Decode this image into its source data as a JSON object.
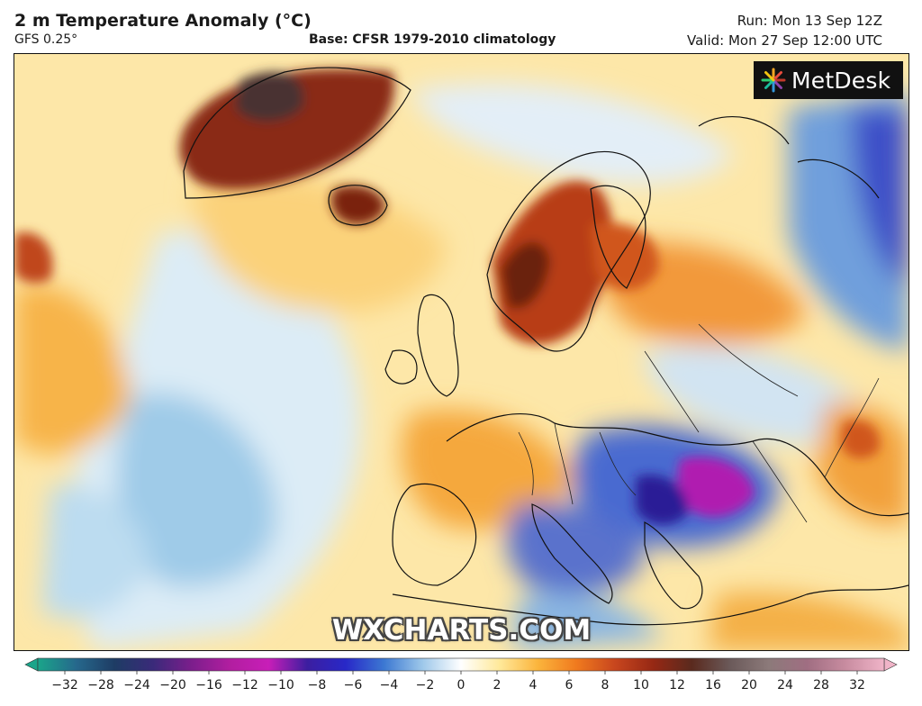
{
  "header": {
    "title": "2 m Temperature Anomaly (°C)",
    "model": "GFS 0.25°",
    "base": "Base: CFSR 1979-2010 climatology",
    "run": "Run: Mon 13 Sep 12Z",
    "valid": "Valid: Mon 27 Sep 12:00 UTC"
  },
  "brand": {
    "name": "MetDesk",
    "icon": "metdesk-starburst-logo"
  },
  "watermark": "WXCHARTS.COM",
  "colorbar": {
    "ticks": [
      "−32",
      "−28",
      "−24",
      "−20",
      "−16",
      "−12",
      "−10",
      "−8",
      "−6",
      "−4",
      "−2",
      "0",
      "2",
      "4",
      "6",
      "8",
      "10",
      "12",
      "16",
      "20",
      "24",
      "28",
      "32"
    ],
    "colors": [
      "#1aa58a",
      "#26688c",
      "#1e3c64",
      "#3a2a7a",
      "#7c1e8c",
      "#b21ea0",
      "#c81eb8",
      "#3c1ea0",
      "#2828c8",
      "#3c78d2",
      "#9ec8ea",
      "#ffffff",
      "#ffe99a",
      "#fbb43c",
      "#f07a1e",
      "#c8461e",
      "#962814",
      "#5a2a1e",
      "#6b5a5a",
      "#8c7a7a",
      "#a06e82",
      "#c88ca0",
      "#f0b4c8"
    ]
  },
  "colors": {
    "warm_light": "#fbe29a",
    "warm": "#f5a53a",
    "hot": "#c0461e",
    "very_hot": "#5a2a1e",
    "cool_light": "#dcebf5",
    "cool": "#8cbfe2",
    "cold": "#3c78d2",
    "very_cold": "#3220a0",
    "extreme_cold": "#c81eb8"
  }
}
